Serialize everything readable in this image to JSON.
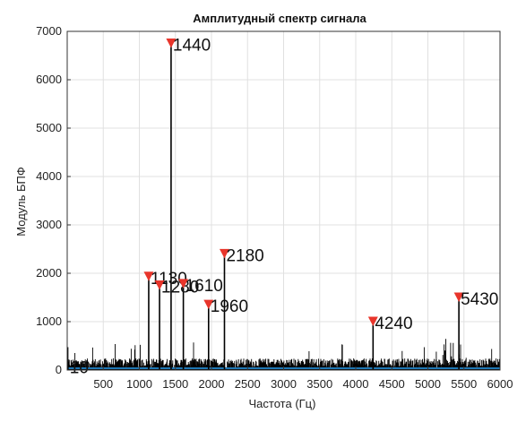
{
  "chart_data": {
    "type": "line",
    "title": "Амплитудный спектр сигнала",
    "xlabel": "Частота (Гц)",
    "ylabel": "Модуль БПФ",
    "xlim": [
      0,
      6000
    ],
    "ylim": [
      0,
      7000
    ],
    "x_ticks": [
      500,
      1000,
      1500,
      2000,
      2500,
      3000,
      3500,
      4000,
      4500,
      5000,
      5500,
      6000
    ],
    "x_tick_labels": [
      "500",
      "1000",
      "1500",
      "2000",
      "2500",
      "3000",
      "3500",
      "4000",
      "4500",
      "5000",
      "5500",
      "6000"
    ],
    "y_ticks": [
      0,
      1000,
      2000,
      3000,
      4000,
      5000,
      6000,
      7000
    ],
    "y_tick_labels": [
      "0",
      "1000",
      "2000",
      "3000",
      "4000",
      "5000",
      "6000",
      "7000"
    ],
    "grid": true,
    "colors": {
      "spectrum": "#000000",
      "marker": "#e8352b",
      "baseline": "#1f77b4",
      "grid": "#e0e0e0"
    },
    "peaks": [
      {
        "x": 10,
        "y": 80,
        "label": "10"
      },
      {
        "x": 1130,
        "y": 1930,
        "label": "1130"
      },
      {
        "x": 1280,
        "y": 1750,
        "label": "1280"
      },
      {
        "x": 1440,
        "y": 6750,
        "label": "1440"
      },
      {
        "x": 1610,
        "y": 1780,
        "label": "1610"
      },
      {
        "x": 1960,
        "y": 1350,
        "label": "1960"
      },
      {
        "x": 2180,
        "y": 2400,
        "label": "2180"
      },
      {
        "x": 4240,
        "y": 1000,
        "label": "4240"
      },
      {
        "x": 5430,
        "y": 1500,
        "label": "5430"
      }
    ]
  }
}
